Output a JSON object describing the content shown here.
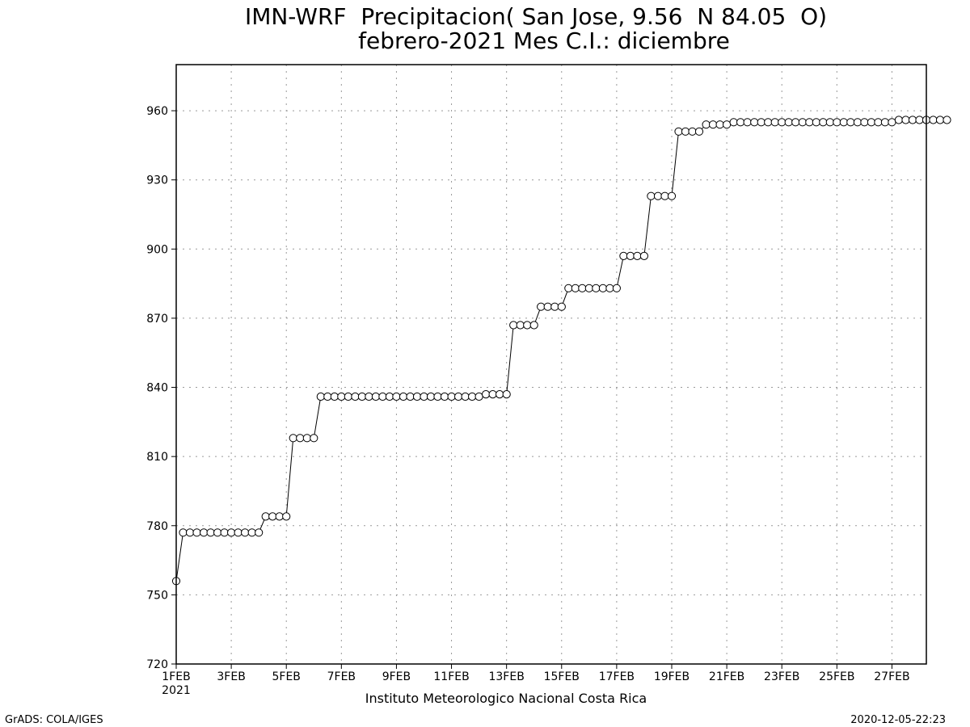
{
  "chart_data": {
    "type": "line",
    "title_line1": "IMN-WRF  Precipitacion( San Jose, 9.56  N 84.05  O)",
    "title_line2": "febrero-2021 Mes C.I.: diciembre",
    "credit": "Instituto Meteorologico Nacional Costa Rica",
    "footer_left": "GrADS: COLA/IGES",
    "footer_right": "2020-12-05-22:23",
    "xlabel": "",
    "ylabel": "",
    "ylim": [
      720,
      980
    ],
    "xlim_days": [
      1,
      28.25
    ],
    "y_ticks": [
      720,
      750,
      780,
      810,
      840,
      870,
      900,
      930,
      960
    ],
    "x_ticks": [
      {
        "day": 1,
        "label": "1FEB",
        "sub": "2021"
      },
      {
        "day": 3,
        "label": "3FEB"
      },
      {
        "day": 5,
        "label": "5FEB"
      },
      {
        "day": 7,
        "label": "7FEB"
      },
      {
        "day": 9,
        "label": "9FEB"
      },
      {
        "day": 11,
        "label": "11FEB"
      },
      {
        "day": 13,
        "label": "13FEB"
      },
      {
        "day": 15,
        "label": "15FEB"
      },
      {
        "day": 17,
        "label": "17FEB"
      },
      {
        "day": 19,
        "label": "19FEB"
      },
      {
        "day": 21,
        "label": "21FEB"
      },
      {
        "day": 23,
        "label": "23FEB"
      },
      {
        "day": 25,
        "label": "25FEB"
      },
      {
        "day": 27,
        "label": "27FEB"
      }
    ],
    "grid": true,
    "marker": "open-circle",
    "time_step_hours": 6,
    "series": [
      {
        "values": [
          756,
          777,
          777,
          777,
          777,
          777,
          777,
          777,
          777,
          777,
          777,
          777,
          777,
          784,
          784,
          784,
          784,
          818,
          818,
          818,
          818,
          836,
          836,
          836,
          836,
          836,
          836,
          836,
          836,
          836,
          836,
          836,
          836,
          836,
          836,
          836,
          836,
          836,
          836,
          836,
          836,
          836,
          836,
          836,
          836,
          837,
          837,
          837,
          837,
          867,
          867,
          867,
          867,
          875,
          875,
          875,
          875,
          883,
          883,
          883,
          883,
          883,
          883,
          883,
          883,
          897,
          897,
          897,
          897,
          923,
          923,
          923,
          923,
          951,
          951,
          951,
          951,
          954,
          954,
          954,
          954,
          955,
          955,
          955,
          955,
          955,
          955,
          955,
          955,
          955,
          955,
          955,
          955,
          955,
          955,
          955,
          955,
          955,
          955,
          955,
          955,
          955,
          955,
          955,
          955,
          956,
          956,
          956,
          956,
          956,
          956,
          956,
          956
        ]
      }
    ]
  }
}
